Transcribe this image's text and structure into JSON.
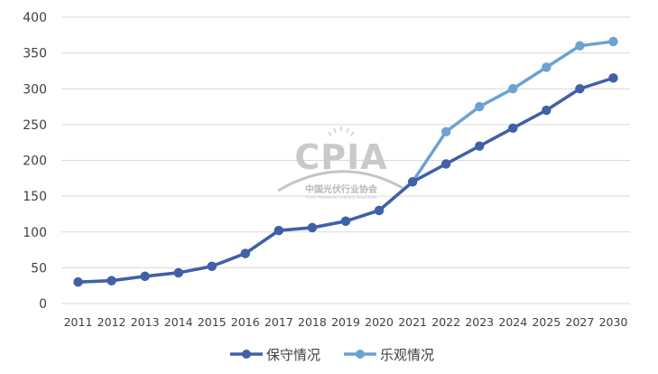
{
  "chart_data": {
    "type": "line",
    "title": "",
    "xlabel": "",
    "ylabel": "",
    "categories": [
      "2011",
      "2012",
      "2013",
      "2014",
      "2015",
      "2016",
      "2017",
      "2018",
      "2019",
      "2020",
      "2021",
      "2022",
      "2023",
      "2024",
      "2025",
      "2027",
      "2030"
    ],
    "ylim": [
      0,
      400
    ],
    "yticks": [
      0,
      50,
      100,
      150,
      200,
      250,
      300,
      350,
      400
    ],
    "grid": true,
    "legend_position": "bottom",
    "series": [
      {
        "name": "保守情况",
        "color": "#4060a8",
        "values": [
          30,
          32,
          38,
          43,
          52,
          70,
          102,
          106,
          115,
          130,
          170,
          195,
          220,
          245,
          270,
          300,
          315
        ]
      },
      {
        "name": "乐观情况",
        "color": "#6ba2d4",
        "values": [
          30,
          32,
          38,
          43,
          52,
          70,
          102,
          106,
          115,
          130,
          170,
          240,
          275,
          300,
          330,
          360,
          366
        ]
      }
    ]
  },
  "watermark": {
    "title": "CPIA",
    "subtitle": "中国光伏行业协会",
    "english": "China Photovoltaic Industry Association"
  },
  "colors": {
    "grid": "#d9d9d9",
    "text": "#404040"
  }
}
